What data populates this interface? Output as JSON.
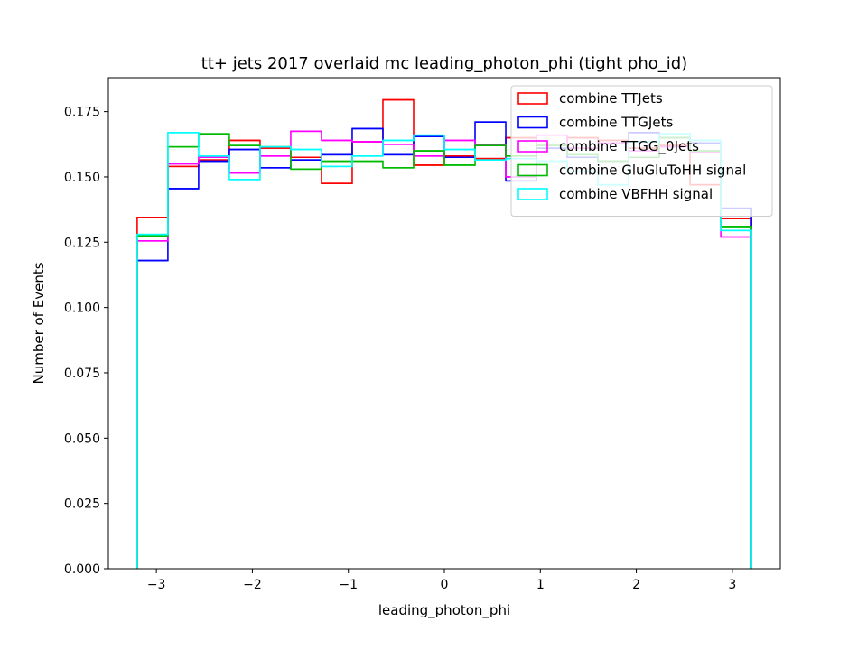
{
  "chart_data": {
    "type": "histogram-step",
    "title": "tt+ jets 2017 overlaid mc leading_photon_phi (tight pho_id)",
    "xlabel": "leading_photon_phi",
    "ylabel": "Number of Events",
    "xlim": [
      -3.5,
      3.5
    ],
    "ylim": [
      0.0,
      0.188
    ],
    "xticks": [
      -3,
      -2,
      -1,
      0,
      1,
      2,
      3
    ],
    "xtick_labels": [
      "−3",
      "−2",
      "−1",
      "0",
      "1",
      "2",
      "3"
    ],
    "yticks": [
      0.0,
      0.025,
      0.05,
      0.075,
      0.1,
      0.125,
      0.15,
      0.175
    ],
    "ytick_labels": [
      "0.000",
      "0.025",
      "0.050",
      "0.075",
      "0.100",
      "0.125",
      "0.150",
      "0.175"
    ],
    "grid": false,
    "legend_position": "top-right",
    "bin_edges": [
      -3.2,
      -2.88,
      -2.56,
      -2.24,
      -1.92,
      -1.6,
      -1.28,
      -0.96,
      -0.64,
      -0.32,
      0.0,
      0.32,
      0.64,
      0.96,
      1.28,
      1.6,
      1.92,
      2.24,
      2.56,
      2.88,
      3.2
    ],
    "series": [
      {
        "name": "combine TTJets",
        "color": "#ff0000",
        "values": [
          0.1345,
          0.154,
          0.1565,
          0.164,
          0.161,
          0.1575,
          0.1475,
          0.1635,
          0.1795,
          0.1545,
          0.158,
          0.157,
          0.165,
          0.162,
          0.165,
          0.164,
          0.161,
          0.162,
          0.147,
          0.134
        ]
      },
      {
        "name": "combine TTGJets",
        "color": "#0000ff",
        "values": [
          0.118,
          0.1455,
          0.156,
          0.1605,
          0.1535,
          0.1565,
          0.1585,
          0.1685,
          0.1585,
          0.1655,
          0.1575,
          0.171,
          0.1485,
          0.161,
          0.1575,
          0.156,
          0.167,
          0.165,
          0.163,
          0.138
        ]
      },
      {
        "name": "combine TTGG_0Jets",
        "color": "#ff00ff",
        "values": [
          0.1255,
          0.155,
          0.1575,
          0.1515,
          0.158,
          0.1675,
          0.164,
          0.1635,
          0.1625,
          0.158,
          0.164,
          0.1625,
          0.15,
          0.166,
          0.161,
          0.163,
          0.16,
          0.1615,
          0.1595,
          0.127
        ]
      },
      {
        "name": "combine GluGluToHH signal",
        "color": "#00bb00",
        "values": [
          0.1275,
          0.1615,
          0.1665,
          0.162,
          0.1615,
          0.153,
          0.156,
          0.156,
          0.1535,
          0.16,
          0.1545,
          0.162,
          0.158,
          0.162,
          0.1585,
          0.156,
          0.1575,
          0.165,
          0.16,
          0.131
        ]
      },
      {
        "name": "combine VBFHH signal",
        "color": "#00ffff",
        "values": [
          0.128,
          0.167,
          0.158,
          0.149,
          0.1615,
          0.1605,
          0.154,
          0.158,
          0.164,
          0.166,
          0.1605,
          0.1565,
          0.157,
          0.156,
          0.152,
          0.147,
          0.1635,
          0.1665,
          0.164,
          0.1295
        ]
      }
    ]
  }
}
